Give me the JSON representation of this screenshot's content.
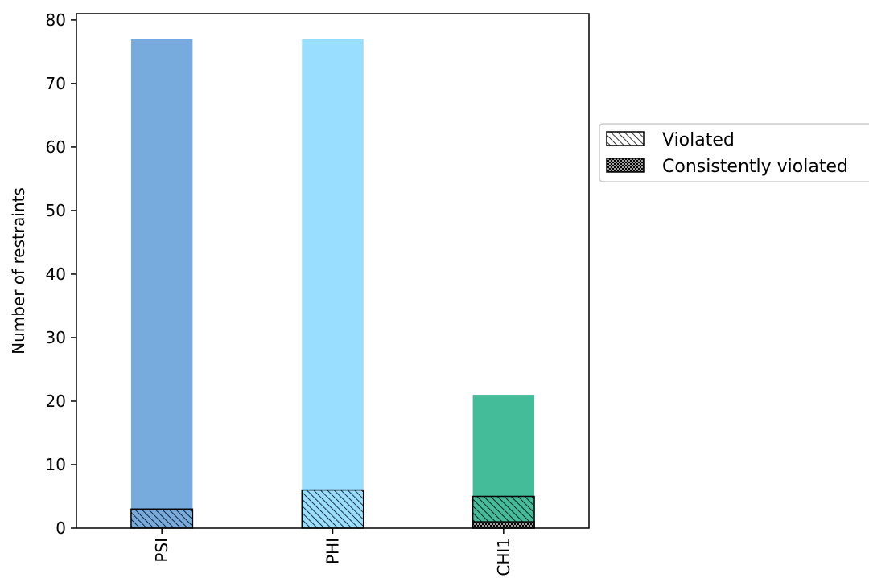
{
  "chart_data": {
    "type": "bar",
    "categories": [
      "PSI",
      "PHI",
      "CHI1"
    ],
    "series": [
      {
        "name": "",
        "values": [
          77,
          77,
          21
        ]
      },
      {
        "name": "Violated",
        "values": [
          3,
          6,
          5
        ]
      },
      {
        "name": "Consistently violated",
        "values": [
          0,
          0,
          1
        ]
      }
    ],
    "bar_colors": [
      "#77aadd",
      "#99ddff",
      "#44bb99"
    ],
    "ylabel": "Number of restraints",
    "xlabel": "",
    "ylim": [
      0,
      81
    ],
    "yticks": [
      0,
      10,
      20,
      30,
      40,
      50,
      60,
      70,
      80
    ],
    "grid": false,
    "legend": {
      "placement": "outside-right",
      "entries": [
        {
          "label": "Violated",
          "pattern": "diagonal-hatch"
        },
        {
          "label": "Consistently violated",
          "pattern": "dense-hatch"
        }
      ]
    }
  }
}
